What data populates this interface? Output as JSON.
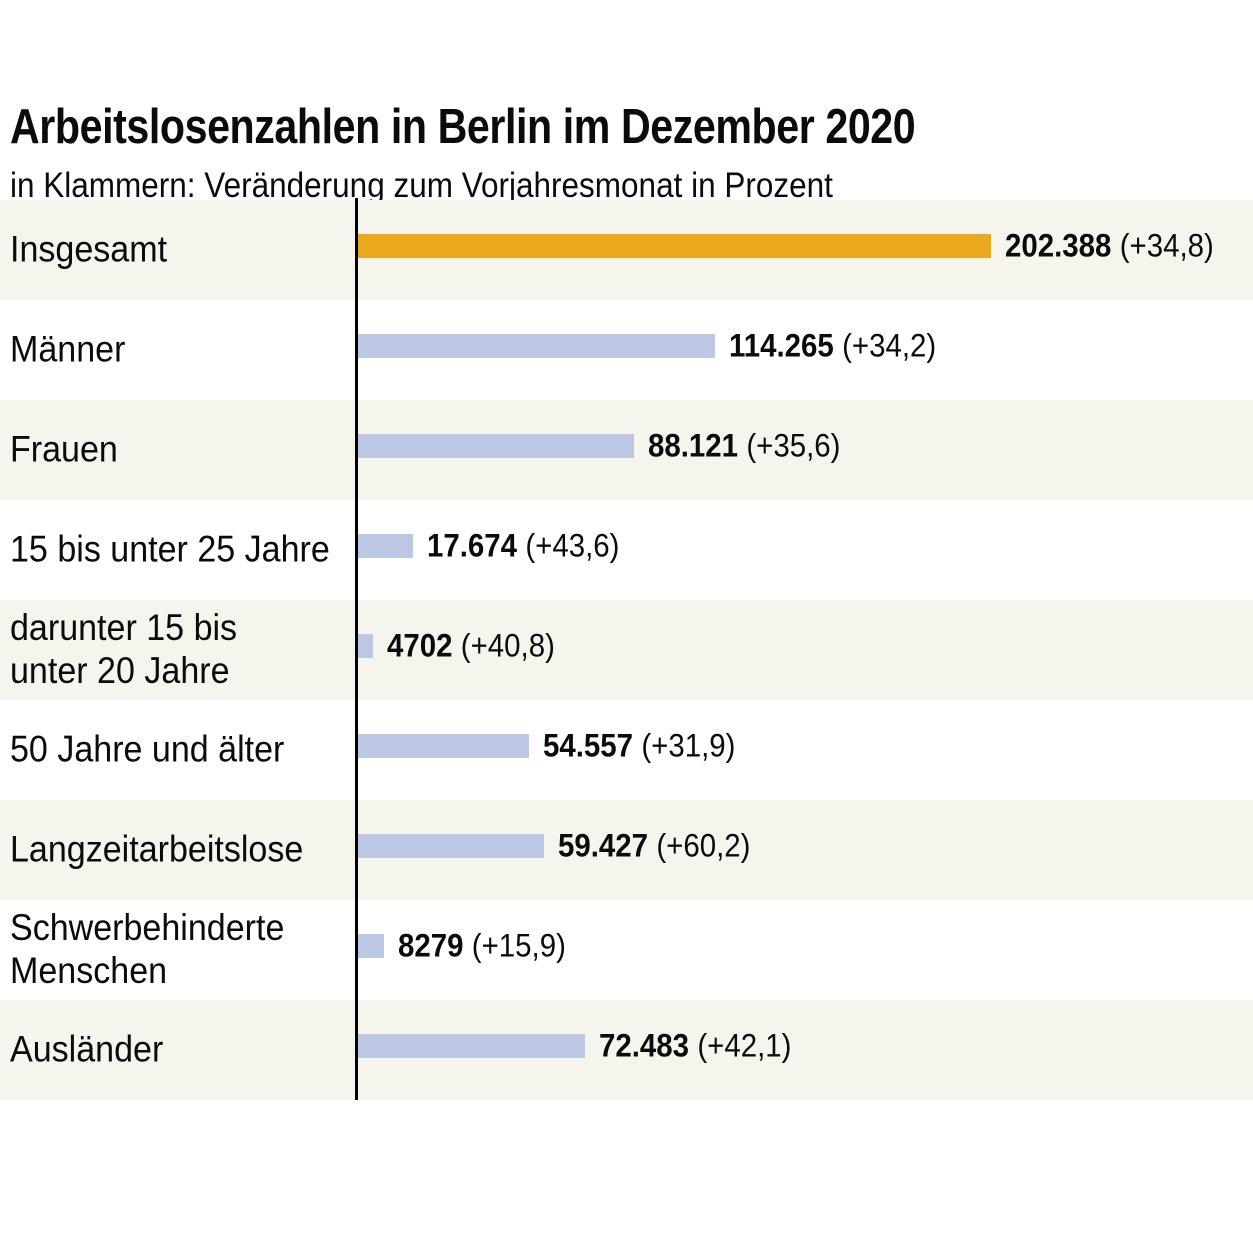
{
  "title": "Arbeitslosenzahlen in Berlin im Dezember 2020",
  "subtitle": "in Klammern: Veränderung zum Vorjahresmonat in Prozent",
  "colors": {
    "highlight_bar": "#e9a81d",
    "bar": "#bcc7e3",
    "row_band": "#f5f4ed",
    "background": "#ffffff",
    "axis_line": "#000000",
    "text": "#0b0b0b"
  },
  "chart_data": {
    "type": "bar",
    "orientation": "horizontal",
    "title": "Arbeitslosenzahlen in Berlin im Dezember 2020",
    "subtitle": "in Klammern: Veränderung zum Vorjahresmonat in Prozent",
    "categories": [
      "Insgesamt",
      "Männer",
      "Frauen",
      "15 bis unter 25 Jahre",
      "darunter 15 bis\nunter 20 Jahre",
      "50 Jahre und älter",
      "Langzeitarbeitslose",
      "Schwerbehinderte\nMenschen",
      "Ausländer"
    ],
    "values": [
      202388,
      114265,
      88121,
      17674,
      4702,
      54557,
      59427,
      8279,
      72483
    ],
    "value_labels": [
      "202.388",
      "114.265",
      "88.121",
      "17.674",
      "4702",
      "54.557",
      "59.427",
      "8279",
      "72.483"
    ],
    "change_labels": [
      "(+34,8)",
      "(+34,2)",
      "(+35,6)",
      "(+43,6)",
      "(+40,8)",
      "(+31,9)",
      "(+60,2)",
      "(+15,9)",
      "(+42,1)"
    ],
    "highlight_index": 0,
    "xlim": [
      0,
      202388
    ],
    "grid": false,
    "legend": false,
    "row_banding": "alternating, first row shaded"
  }
}
